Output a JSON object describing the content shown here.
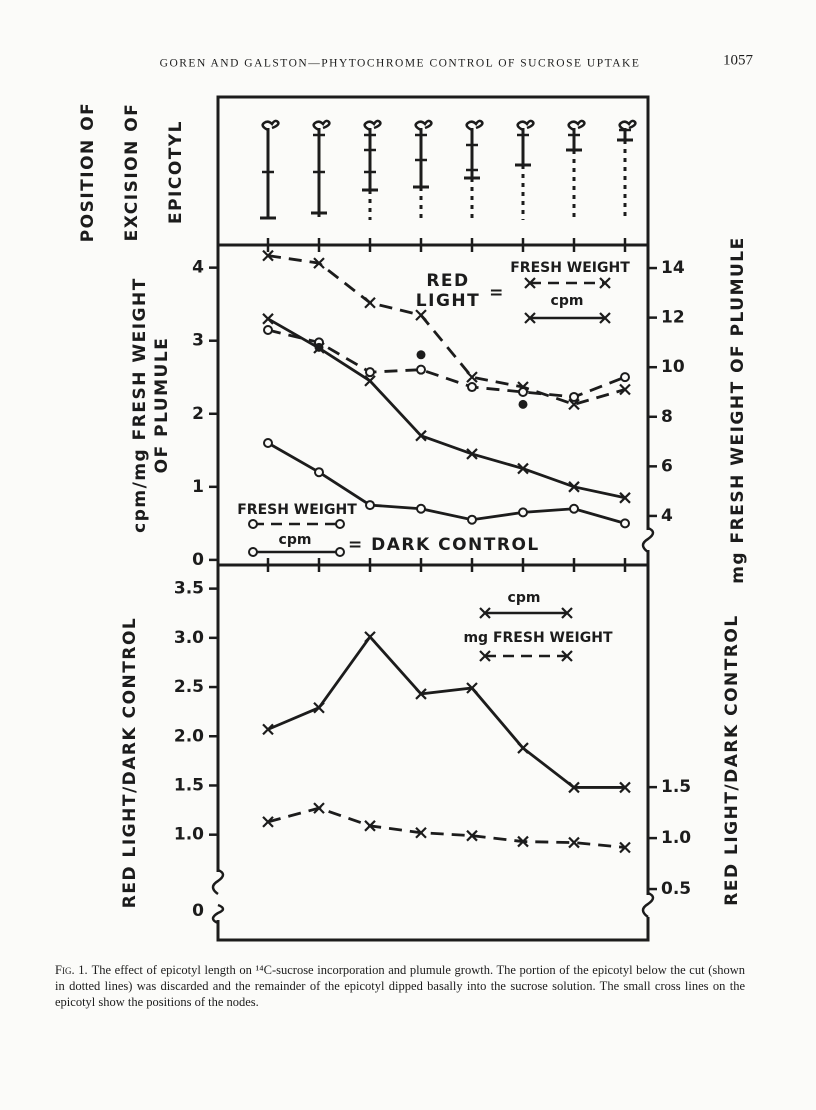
{
  "header": {
    "running_title": "GOREN AND GALSTON—PHYTOCHROME CONTROL OF SUCROSE UPTAKE",
    "page_number": "1057"
  },
  "excision_panel": {
    "ylabel": [
      "POSITION OF",
      "EXCISION OF",
      "EPICOTYL"
    ]
  },
  "chart_data": [
    {
      "type": "line",
      "categories": [
        null,
        null,
        null,
        null,
        null,
        null,
        null,
        null
      ],
      "ylabel": [
        "cpm/mg FRESH WEIGHT",
        "OF PLUMULE"
      ],
      "y2label": "mg FRESH WEIGHT OF PLUMULE",
      "ylim": [
        -0.07,
        4.31
      ],
      "yticks": [
        0,
        1,
        2,
        3,
        4
      ],
      "y2lim": [
        2.02,
        14.93
      ],
      "y2ticks": [
        4,
        6,
        8,
        10,
        12,
        14
      ],
      "series": [
        {
          "name": "FRESH WEIGHT",
          "marker": "x",
          "dashed": true,
          "axis": "y2",
          "color": "#1c1c1c",
          "values": [
            14.5,
            14.2,
            12.6,
            12.1,
            9.6,
            9.2,
            8.5,
            9.1
          ]
        },
        {
          "name": "cpm",
          "marker": "x",
          "dashed": false,
          "color": "#1c1c1c",
          "values": [
            3.3,
            2.9,
            2.45,
            1.7,
            1.45,
            1.25,
            1.0,
            0.85
          ]
        },
        {
          "name": "FRESH WEIGHT",
          "marker": "o",
          "dashed": true,
          "axis": "y2",
          "color": "#1c1c1c",
          "values": [
            11.5,
            11.0,
            9.8,
            9.9,
            9.2,
            9.0,
            8.8,
            9.6
          ]
        },
        {
          "name": "cpm",
          "marker": "o",
          "dashed": false,
          "color": "#1c1c1c",
          "values": [
            1.6,
            1.2,
            0.75,
            0.7,
            0.55,
            0.65,
            0.7,
            0.5
          ]
        },
        {
          "marker": "dot",
          "line": false,
          "axis": "y2",
          "color": "#1c1c1c",
          "values": [
            null,
            10.8,
            null,
            10.5,
            null,
            8.5,
            null,
            null
          ]
        }
      ],
      "legend": {
        "red_light_title": [
          "RED",
          "LIGHT"
        ],
        "red_light_equals": "=",
        "dark_control_label": "= DARK CONTROL"
      }
    },
    {
      "type": "line",
      "categories": [
        null,
        null,
        null,
        null,
        null,
        null,
        null,
        null
      ],
      "ylabel": "RED LIGHT/DARK CONTROL",
      "y2label": "RED LIGHT/DARK CONTROL",
      "ylim": [
        -0.07,
        3.74
      ],
      "yticks": [
        {
          "value": 1,
          "label": "1.0"
        },
        1.5,
        {
          "value": 2,
          "label": "2.0"
        },
        2.5,
        {
          "value": 3,
          "label": "3.0"
        },
        3.5
      ],
      "ybreak_label": "0",
      "y2lim": [
        0,
        3.68
      ],
      "y2ticks": [
        0.5,
        {
          "value": 1,
          "label": "1.0"
        },
        1.5
      ],
      "series": [
        {
          "name": "cpm",
          "marker": "x",
          "dashed": false,
          "color": "#1c1c1c",
          "values": [
            2.07,
            2.29,
            3.01,
            2.43,
            2.49,
            1.88,
            1.48,
            1.48
          ]
        },
        {
          "name": "mg FRESH WEIGHT",
          "marker": "x",
          "dashed": true,
          "color": "#1c1c1c",
          "values": [
            1.13,
            1.27,
            1.09,
            1.02,
            0.99,
            0.93,
            0.92,
            0.87
          ]
        }
      ]
    }
  ],
  "caption": {
    "label": "Fig. 1.",
    "text": "The effect of epicotyl length on ¹⁴C-sucrose incorporation and plumule growth. The portion of the epicotyl below the cut (shown in dotted lines) was discarded and the remainder of the epicotyl dipped basally into the sucrose solution. The small cross lines on the epicotyl show the positions of the nodes."
  }
}
